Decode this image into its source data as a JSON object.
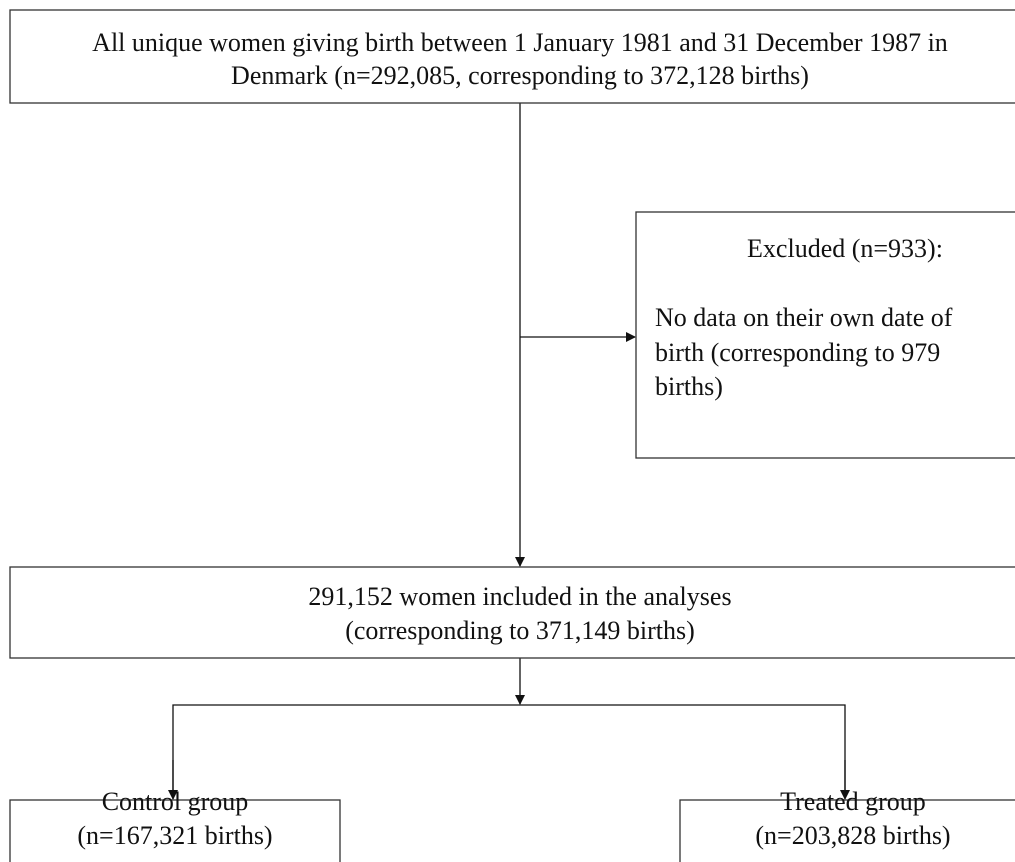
{
  "nodes": [
    {
      "lines": [
        "All unique women giving birth between 1 January 1981 and 31 December 1987 in",
        "Denmark (n=292,085, corresponding to 372,128 births)"
      ]
    },
    {
      "title": "Excluded (n=933):",
      "lines": [
        "No data on their own date of",
        "birth (corresponding to 979",
        "births)"
      ]
    },
    {
      "lines": [
        "291,152 women included in the analyses",
        "(corresponding to 371,149 births)"
      ]
    },
    {
      "lines": [
        "Control group",
        "(n=167,321 births)"
      ]
    },
    {
      "lines": [
        "Treated group",
        "(n=203,828 births)"
      ]
    }
  ]
}
